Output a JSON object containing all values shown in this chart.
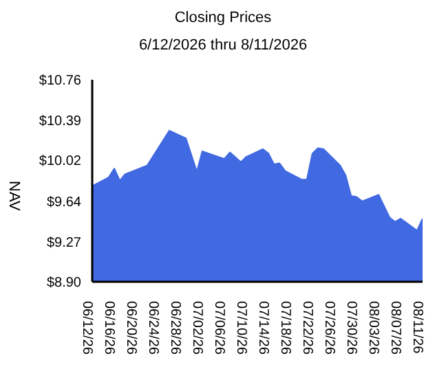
{
  "chart_data": {
    "type": "area",
    "title": "Closing Prices",
    "subtitle": "6/12/2026 thru 8/11/2026",
    "ylabel": "NAV",
    "x": [
      "2026-06-12",
      "2026-06-15",
      "2026-06-16",
      "2026-06-17",
      "2026-06-18",
      "2026-06-22",
      "2026-06-26",
      "2026-06-29",
      "2026-07-01",
      "2026-07-02",
      "2026-07-06",
      "2026-07-07",
      "2026-07-09",
      "2026-07-10",
      "2026-07-13",
      "2026-07-14",
      "2026-07-15",
      "2026-07-16",
      "2026-07-17",
      "2026-07-20",
      "2026-07-21",
      "2026-07-22",
      "2026-07-23",
      "2026-07-24",
      "2026-07-27",
      "2026-07-28",
      "2026-07-29",
      "2026-07-30",
      "2026-07-31",
      "2026-08-03",
      "2026-08-05",
      "2026-08-06",
      "2026-08-07",
      "2026-08-10",
      "2026-08-11"
    ],
    "series": [
      {
        "color": "#4169e1",
        "values": [
          9.78,
          9.86,
          9.94,
          9.83,
          9.89,
          9.97,
          10.29,
          10.22,
          9.91,
          10.1,
          10.03,
          10.09,
          10.0,
          10.05,
          10.12,
          10.08,
          9.98,
          9.99,
          9.92,
          9.84,
          9.84,
          10.08,
          10.13,
          10.12,
          9.97,
          9.88,
          9.69,
          9.68,
          9.64,
          9.7,
          9.49,
          9.45,
          9.48,
          9.37,
          9.48
        ]
      }
    ],
    "xlim": [
      "2026-06-12",
      "2026-08-11"
    ],
    "xticks": [
      {
        "value": "2026-06-12",
        "label": "06/12/26"
      },
      {
        "value": "2026-06-16",
        "label": "06/16/26"
      },
      {
        "value": "2026-06-20",
        "label": "06/20/26"
      },
      {
        "value": "2026-06-24",
        "label": "06/24/26"
      },
      {
        "value": "2026-06-28",
        "label": "06/28/26"
      },
      {
        "value": "2026-07-02",
        "label": "07/02/26"
      },
      {
        "value": "2026-07-06",
        "label": "07/06/26"
      },
      {
        "value": "2026-07-10",
        "label": "07/10/26"
      },
      {
        "value": "2026-07-14",
        "label": "07/14/26"
      },
      {
        "value": "2026-07-18",
        "label": "07/18/26"
      },
      {
        "value": "2026-07-22",
        "label": "07/22/26"
      },
      {
        "value": "2026-07-26",
        "label": "07/26/26"
      },
      {
        "value": "2026-07-30",
        "label": "07/30/26"
      },
      {
        "value": "2026-08-03",
        "label": "08/03/26"
      },
      {
        "value": "2026-08-07",
        "label": "08/07/26"
      },
      {
        "value": "2026-08-11",
        "label": "08/11/26"
      }
    ],
    "ylim": [
      8.9,
      10.76
    ],
    "yticks": [
      {
        "value": 8.9,
        "label": "$8.90"
      },
      {
        "value": 9.27,
        "label": "$9.27"
      },
      {
        "value": 9.64,
        "label": "$9.64"
      },
      {
        "value": 10.02,
        "label": "$10.02"
      },
      {
        "value": 10.39,
        "label": "$10.39"
      },
      {
        "value": 10.76,
        "label": "$10.76"
      }
    ],
    "grid": false,
    "legend": false
  }
}
